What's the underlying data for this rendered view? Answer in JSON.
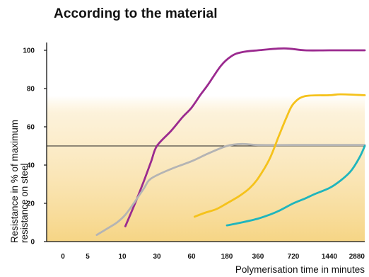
{
  "chart_data": {
    "type": "line",
    "title": "According to the material",
    "xlabel": "Polymerisation time in minutes",
    "ylabel": "Resistance in % of maximum resistance on steel",
    "ylabel_lines": [
      "Resistance in % of maximum",
      "resistance on steel"
    ],
    "x_ticks": [
      "0",
      "5",
      "10",
      "30",
      "60",
      "180",
      "360",
      "720",
      "1440",
      "2880"
    ],
    "y_ticks": [
      0,
      20,
      40,
      60,
      80,
      100
    ],
    "ylim": [
      0,
      100
    ],
    "x_scale": "categorical-log (evenly spaced tick labels)",
    "reference_line": {
      "y": 50
    },
    "background": "gradient fill, pale yellow fading to white above ~75%",
    "grid": false,
    "series": [
      {
        "color": "#9b2a8f",
        "points": [
          [
            11,
            8
          ],
          [
            15,
            20
          ],
          [
            20,
            32
          ],
          [
            25,
            42
          ],
          [
            30,
            50
          ],
          [
            40,
            58
          ],
          [
            50,
            65
          ],
          [
            60,
            70
          ],
          [
            80,
            77
          ],
          [
            100,
            82
          ],
          [
            150,
            92
          ],
          [
            200,
            97
          ],
          [
            250,
            99
          ],
          [
            360,
            100
          ],
          [
            600,
            101
          ],
          [
            900,
            100
          ],
          [
            1440,
            100
          ],
          [
            2880,
            100
          ]
        ]
      },
      {
        "color": "#b4b4b4",
        "points": [
          [
            6,
            3.5
          ],
          [
            7.5,
            7
          ],
          [
            9,
            10
          ],
          [
            11,
            14
          ],
          [
            15,
            21
          ],
          [
            20,
            28
          ],
          [
            25,
            33
          ],
          [
            40,
            38
          ],
          [
            60,
            42
          ],
          [
            100,
            46
          ],
          [
            180,
            50
          ],
          [
            250,
            51
          ],
          [
            360,
            50.5
          ],
          [
            720,
            50.5
          ],
          [
            1440,
            50.5
          ],
          [
            2880,
            50.5
          ]
        ]
      },
      {
        "color": "#f5c21b",
        "points": [
          [
            66,
            13
          ],
          [
            90,
            15
          ],
          [
            130,
            17
          ],
          [
            180,
            20
          ],
          [
            240,
            24
          ],
          [
            300,
            28
          ],
          [
            360,
            33
          ],
          [
            450,
            43
          ],
          [
            540,
            55
          ],
          [
            630,
            65
          ],
          [
            720,
            72
          ],
          [
            900,
            76
          ],
          [
            1440,
            76.5
          ],
          [
            1800,
            77
          ],
          [
            2880,
            76.5
          ]
        ]
      },
      {
        "color": "#1fb5bd",
        "points": [
          [
            180,
            8.5
          ],
          [
            250,
            10
          ],
          [
            360,
            12
          ],
          [
            450,
            14
          ],
          [
            540,
            16
          ],
          [
            720,
            20
          ],
          [
            900,
            22.5
          ],
          [
            1100,
            25
          ],
          [
            1440,
            28
          ],
          [
            1800,
            32
          ],
          [
            2200,
            37
          ],
          [
            2600,
            44
          ],
          [
            2880,
            50
          ]
        ]
      }
    ]
  }
}
